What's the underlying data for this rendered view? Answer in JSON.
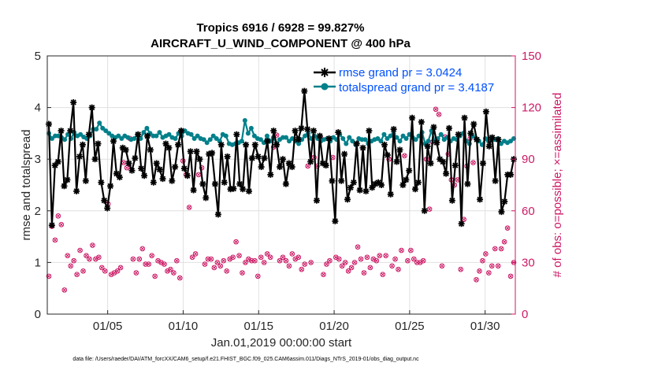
{
  "chart_data": {
    "type": "line",
    "title": "Tropics 6916 / 6928 = 99.827%",
    "subtitle": "AIRCRAFT_U_WIND_COMPONENT @ 400 hPa",
    "xlabel": "Jan.01,2019 00:00:00 start",
    "ylabel": "rmse and totalspread",
    "ylabel_right": "# of obs: o=possible; ×=assimilated",
    "footer": "data file: /Users/raeder/DAI/ATM_forcXX/CAM6_setup/f.e21.FHIST_BGC.f09_025.CAM6assim.011/Diags_NTrS_2019-01/obs_diag_output.nc",
    "x_ticks": [
      "01/05",
      "01/10",
      "01/15",
      "01/20",
      "01/25",
      "01/30"
    ],
    "x_tick_days": [
      5,
      10,
      15,
      20,
      25,
      30
    ],
    "xlim": [
      1,
      32
    ],
    "ylim": [
      0,
      5
    ],
    "y_ticks": [
      "0",
      "1",
      "2",
      "3",
      "4",
      "5"
    ],
    "ylim_right": [
      0,
      150
    ],
    "y_ticks_right": [
      "0",
      "30",
      "60",
      "90",
      "120",
      "150"
    ],
    "legend_position": "top-right",
    "colors": {
      "rmse": "#000000",
      "spread": "#00808a",
      "obs": "#cc1a66"
    },
    "series": [
      {
        "name": "rmse grand pr = 3.0424",
        "values": [
          3.68,
          1.72,
          2.88,
          2.95,
          3.55,
          2.48,
          2.6,
          3.55,
          4.1,
          2.38,
          3.05,
          3.28,
          2.58,
          3.48,
          4.0,
          3.0,
          3.3,
          2.55,
          2.2,
          2.05,
          2.48,
          3.35,
          2.72,
          2.65,
          3.22,
          3.18,
          2.92,
          2.78,
          3.02,
          3.48,
          2.82,
          2.68,
          3.45,
          3.18,
          2.55,
          2.92,
          2.8,
          2.62,
          3.3,
          3.22,
          2.58,
          2.85,
          3.28,
          3.55,
          2.82,
          2.68,
          3.15,
          2.4,
          3.15,
          3.0,
          2.52,
          2.25,
          3.1,
          3.12,
          2.52,
          1.93,
          3.28,
          2.55,
          3.05,
          2.42,
          2.43,
          3.48,
          2.52,
          2.42,
          3.28,
          2.38,
          3.02,
          3.28,
          3.05,
          2.85,
          3.02,
          3.35,
          2.7,
          3.55,
          3.28,
          2.85,
          3.0,
          2.52,
          2.92,
          2.85,
          3.55,
          3.38,
          3.6,
          4.32,
          3.58,
          2.95,
          3.55,
          2.2,
          3.45,
          2.92,
          2.88,
          3.4,
          2.58,
          1.8,
          3.52,
          2.58,
          3.1,
          2.22,
          2.45,
          2.55,
          3.3,
          2.4,
          3.22,
          2.38,
          3.55,
          2.45,
          2.52,
          2.55,
          2.5,
          3.28,
          3.08,
          2.32,
          3.58,
          2.95,
          3.18,
          2.5,
          2.6,
          2.78,
          3.8,
          2.42,
          2.55,
          3.72,
          2.0,
          3.25,
          2.92,
          3.62,
          3.32,
          3.0,
          2.95,
          2.72,
          3.6,
          2.2,
          2.88,
          3.48,
          1.75,
          3.8,
          2.52,
          3.5,
          3.68,
          3.38,
          2.22,
          2.92,
          3.92,
          3.25,
          3.42,
          2.58,
          3.38,
          1.98,
          2.18,
          2.7,
          2.7,
          3.0
        ]
      },
      {
        "name": "totalspread grand pr = 3.4187",
        "values": [
          3.5,
          3.4,
          3.45,
          3.45,
          3.42,
          3.38,
          3.48,
          3.4,
          3.52,
          3.45,
          3.48,
          3.43,
          3.4,
          3.45,
          3.58,
          3.58,
          3.7,
          3.6,
          3.55,
          3.5,
          3.45,
          3.42,
          3.45,
          3.4,
          3.45,
          3.42,
          3.38,
          3.4,
          3.48,
          3.4,
          3.52,
          3.6,
          3.5,
          3.45,
          3.45,
          3.52,
          3.42,
          3.45,
          3.48,
          3.42,
          3.4,
          3.5,
          3.45,
          3.55,
          3.5,
          3.48,
          3.4,
          3.45,
          3.4,
          3.38,
          3.32,
          3.38,
          3.45,
          3.4,
          3.35,
          3.48,
          3.45,
          3.3,
          3.28,
          3.3,
          3.32,
          3.35,
          3.75,
          3.5,
          3.6,
          3.45,
          3.4,
          3.38,
          3.32,
          3.45,
          3.35,
          3.42,
          3.3,
          3.38,
          3.42,
          3.42,
          3.35,
          3.4,
          3.35,
          3.3,
          3.38,
          3.45,
          3.5,
          3.4,
          3.45,
          3.4,
          3.35,
          3.38,
          3.4,
          3.35,
          3.42,
          3.38,
          3.48,
          3.4,
          3.3,
          3.42,
          3.35,
          3.28,
          3.4,
          3.38,
          3.38,
          3.3,
          3.35,
          3.38,
          3.4,
          3.35,
          3.48,
          3.4,
          3.45,
          3.5,
          3.42,
          3.35,
          3.45,
          3.4,
          3.48,
          3.42,
          3.38,
          3.45,
          3.52,
          3.3,
          3.35,
          3.55,
          3.35,
          3.4,
          3.48,
          3.38,
          3.42,
          3.35,
          3.4,
          3.38,
          3.45,
          3.5,
          3.35,
          3.3,
          3.45,
          3.4,
          3.35,
          3.28,
          3.4,
          3.35,
          3.42,
          3.38,
          3.4,
          3.3,
          3.35,
          3.32,
          3.35,
          3.4
        ]
      }
    ],
    "obs_counts": [
      22,
      51,
      43,
      57,
      52,
      14,
      34,
      28,
      31,
      23,
      37,
      25,
      34,
      32,
      40,
      32,
      33,
      27,
      25,
      64,
      23,
      24,
      25,
      27,
      88,
      85,
      102,
      32,
      24,
      32,
      38,
      29,
      29,
      34,
      22,
      31,
      30,
      29,
      25,
      26,
      24,
      31,
      21,
      89,
      81,
      62,
      33,
      35,
      81,
      85,
      29,
      32,
      32,
      27,
      30,
      28,
      31,
      25,
      32,
      33,
      42,
      34,
      24,
      30,
      32,
      31,
      31,
      22,
      33,
      30,
      35,
      33,
      97,
      104,
      31,
      33,
      31,
      28,
      35,
      32,
      33,
      26,
      29,
      86,
      30,
      91,
      86,
      103,
      23,
      29,
      31,
      91,
      33,
      32,
      28,
      30,
      25,
      27,
      30,
      39,
      32,
      24,
      33,
      27,
      32,
      31,
      34,
      23,
      34,
      90,
      28,
      32,
      26,
      37,
      92,
      31,
      37,
      32,
      30,
      30,
      31,
      90,
      61,
      100,
      119,
      116,
      28,
      103,
      93,
      78,
      75,
      78,
      26,
      55,
      86,
      102,
      88,
      20,
      25,
      31,
      35,
      24,
      28,
      38,
      28,
      38,
      42,
      50,
      22,
      30
    ]
  }
}
